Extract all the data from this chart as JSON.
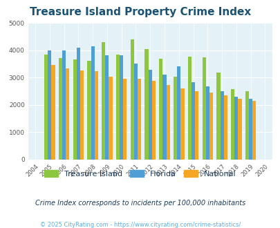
{
  "title": "Treasure Island Property Crime Index",
  "years": [
    2004,
    2005,
    2006,
    2007,
    2008,
    2009,
    2010,
    2011,
    2012,
    2013,
    2014,
    2015,
    2016,
    2017,
    2018,
    2019,
    2020
  ],
  "treasure_island": [
    null,
    3850,
    3700,
    3650,
    3620,
    4300,
    3830,
    4400,
    4050,
    3680,
    3040,
    3770,
    3730,
    3190,
    2580,
    2490,
    null
  ],
  "florida": [
    null,
    4000,
    3980,
    4080,
    4130,
    3820,
    3820,
    3500,
    3290,
    3110,
    3400,
    2820,
    2680,
    2490,
    2300,
    2220,
    null
  ],
  "national": [
    null,
    3450,
    3340,
    3250,
    3220,
    3030,
    2960,
    2960,
    2890,
    2720,
    2600,
    2490,
    2450,
    2350,
    2210,
    2140,
    null
  ],
  "bar_colors": {
    "treasure_island": "#8dc63f",
    "florida": "#4f9fd4",
    "national": "#f5a623"
  },
  "ylim": [
    0,
    5000
  ],
  "yticks": [
    0,
    1000,
    2000,
    3000,
    4000,
    5000
  ],
  "plot_bg": "#e4f2f7",
  "grid_color": "#ffffff",
  "subtitle": "Crime Index corresponds to incidents per 100,000 inhabitants",
  "footer": "© 2025 CityRating.com - https://www.cityrating.com/crime-statistics/",
  "title_color": "#1a5276",
  "subtitle_color": "#1a3a5c",
  "footer_color": "#5dade2"
}
